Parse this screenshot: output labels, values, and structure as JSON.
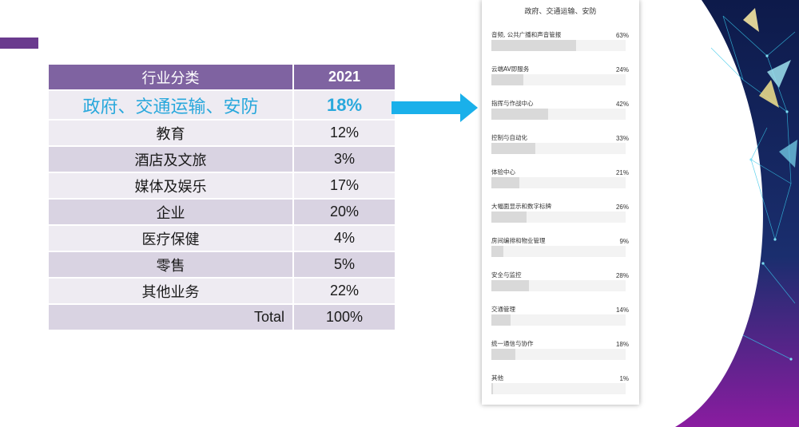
{
  "left_table": {
    "header": [
      "行业分类",
      "2021"
    ],
    "rows": [
      [
        "政府、交通运输、安防",
        "18%"
      ],
      [
        "教育",
        "12%"
      ],
      [
        "酒店及文旅",
        "3%"
      ],
      [
        "媒体及娱乐",
        "17%"
      ],
      [
        "企业",
        "20%"
      ],
      [
        "医疗保健",
        "4%"
      ],
      [
        "零售",
        "5%"
      ],
      [
        "其他业务",
        "22%"
      ],
      [
        "Total",
        "100%"
      ]
    ]
  },
  "colors": {
    "header": "#7f63a1",
    "row_dark": "#d9d3e2",
    "row_light": "#eeebf2",
    "highlight_text": "#29a8dc",
    "arrow": "#1ab0ea",
    "accent_bar": "#6a3a8e"
  },
  "chart_data": {
    "type": "bar",
    "orientation": "horizontal",
    "title": "政府、交通运输、安防",
    "categories": [
      "音频, 公共广播和声音管报",
      "云端AV即服务",
      "指挥与作战中心",
      "控制与自动化",
      "体验中心",
      "大幅面显示和数字标牌",
      "房间编排和物业管理",
      "安全与监控",
      "交通管理",
      "统一通信与协作",
      "其他"
    ],
    "values": [
      63,
      24,
      42,
      33,
      21,
      26,
      9,
      28,
      14,
      18,
      1
    ],
    "value_labels": [
      "63%",
      "24%",
      "42%",
      "33%",
      "21%",
      "26%",
      "9%",
      "28%",
      "14%",
      "18%",
      "1%"
    ],
    "xlim": [
      0,
      100
    ],
    "unit": "%"
  }
}
